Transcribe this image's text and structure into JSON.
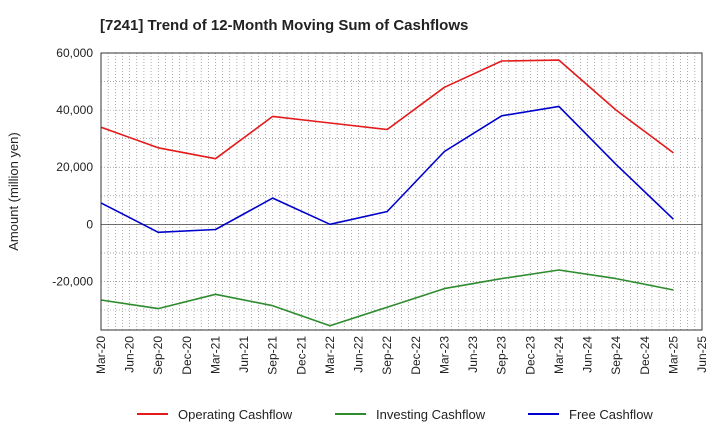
{
  "chart_data": {
    "type": "line",
    "title": "[7241]  Trend of 12-Month Moving Sum of Cashflows",
    "xlabel": "",
    "ylabel": "Amount (million yen)",
    "x": [
      "Mar-20",
      "Jun-20",
      "Sep-20",
      "Dec-20",
      "Mar-21",
      "Jun-21",
      "Sep-21",
      "Dec-21",
      "Mar-22",
      "Jun-22",
      "Sep-22",
      "Dec-22",
      "Mar-23",
      "Jun-23",
      "Sep-23",
      "Dec-23",
      "Mar-24",
      "Jun-24",
      "Sep-24",
      "Dec-24",
      "Mar-25",
      "Jun-25"
    ],
    "ylim": [
      -37000,
      60000
    ],
    "yticks": [
      -20000,
      0,
      20000,
      40000,
      60000
    ],
    "ytick_labels": [
      "-20,000",
      "0",
      "20,000",
      "40,000",
      "60,000"
    ],
    "grid": true,
    "legend_position": "bottom",
    "series": [
      {
        "name": "Operating Cashflow",
        "color": "#e41a1c",
        "values": [
          34000,
          null,
          26800,
          null,
          23000,
          null,
          37800,
          null,
          35500,
          null,
          33200,
          null,
          48000,
          null,
          57200,
          null,
          57500,
          null,
          40000,
          null,
          25000,
          null
        ]
      },
      {
        "name": "Investing Cashflow",
        "color": "#2e8b2e",
        "values": [
          -26500,
          null,
          -29500,
          null,
          -24500,
          null,
          -28500,
          null,
          -35500,
          null,
          -29000,
          null,
          -22500,
          null,
          -19000,
          null,
          -16000,
          null,
          -19000,
          null,
          -23000,
          null
        ]
      },
      {
        "name": "Free Cashflow",
        "color": "#0000cc",
        "values": [
          7500,
          null,
          -2800,
          null,
          -1800,
          null,
          9200,
          null,
          0,
          null,
          4500,
          null,
          25500,
          null,
          38000,
          null,
          41300,
          null,
          21000,
          null,
          1800,
          null
        ]
      }
    ]
  }
}
